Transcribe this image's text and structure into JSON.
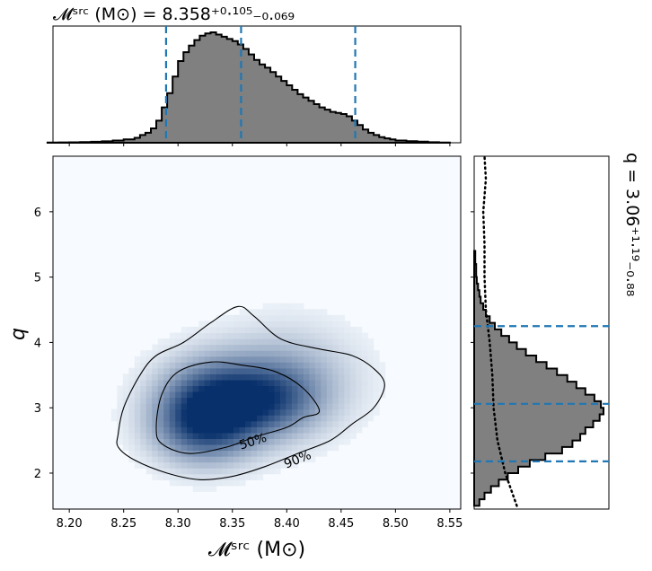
{
  "title": {
    "top": "𝓜ˢʳᶜ (M⊙) = 8.358⁺⁰·¹⁰⁵₋₀.₀₆₉",
    "right": "q = 3.06⁺¹·¹⁹₋₀.₈₈"
  },
  "axes": {
    "xlabel": "𝓜ˢʳᶜ (M⊙)",
    "ylabel": "q"
  },
  "colors": {
    "hist_fill": "#808080",
    "hist_edge": "#000000",
    "quantile_line": "#1f77b4",
    "density_high": "#08306b",
    "density_low": "#f7fbff"
  },
  "chart_data": {
    "type": "heatmap",
    "xlim": [
      8.185,
      8.56
    ],
    "ylim": [
      1.45,
      6.85
    ],
    "xticks": [
      8.2,
      8.25,
      8.3,
      8.35,
      8.4,
      8.45,
      8.5,
      8.55
    ],
    "xtick_labels": [
      "8.20",
      "8.25",
      "8.30",
      "8.35",
      "8.40",
      "8.45",
      "8.50",
      "8.55"
    ],
    "yticks": [
      2,
      3,
      4,
      5,
      6
    ],
    "ytick_labels": [
      "2",
      "3",
      "4",
      "5",
      "6"
    ],
    "contour_labels": [
      "50%",
      "90%"
    ],
    "mchirp_quantiles": [
      8.289,
      8.358,
      8.463
    ],
    "q_quantiles": [
      2.18,
      3.06,
      4.25
    ],
    "mchirp_marginal": {
      "bins": [
        8.18,
        8.19,
        8.2,
        8.21,
        8.22,
        8.23,
        8.24,
        8.25,
        8.26,
        8.265,
        8.27,
        8.275,
        8.28,
        8.285,
        8.29,
        8.295,
        8.3,
        8.305,
        8.31,
        8.315,
        8.32,
        8.325,
        8.33,
        8.335,
        8.34,
        8.345,
        8.35,
        8.355,
        8.36,
        8.365,
        8.37,
        8.375,
        8.38,
        8.385,
        8.39,
        8.395,
        8.4,
        8.405,
        8.41,
        8.415,
        8.42,
        8.425,
        8.43,
        8.435,
        8.44,
        8.445,
        8.45,
        8.455,
        8.46,
        8.465,
        8.47,
        8.475,
        8.48,
        8.485,
        8.49,
        8.495,
        8.5,
        8.51,
        8.52,
        8.53,
        8.54,
        8.55
      ],
      "density": [
        0.002,
        0.003,
        0.004,
        0.006,
        0.009,
        0.013,
        0.02,
        0.03,
        0.045,
        0.07,
        0.09,
        0.13,
        0.2,
        0.32,
        0.45,
        0.6,
        0.74,
        0.82,
        0.88,
        0.93,
        0.97,
        0.99,
        1.0,
        0.98,
        0.96,
        0.94,
        0.92,
        0.89,
        0.85,
        0.8,
        0.75,
        0.71,
        0.68,
        0.64,
        0.6,
        0.56,
        0.52,
        0.48,
        0.44,
        0.41,
        0.38,
        0.35,
        0.32,
        0.3,
        0.28,
        0.27,
        0.26,
        0.24,
        0.2,
        0.16,
        0.12,
        0.09,
        0.07,
        0.05,
        0.04,
        0.03,
        0.02,
        0.015,
        0.01,
        0.005,
        0.002
      ]
    },
    "q_marginal": {
      "bins": [
        1.5,
        1.6,
        1.7,
        1.8,
        1.9,
        2.0,
        2.1,
        2.2,
        2.3,
        2.4,
        2.5,
        2.6,
        2.7,
        2.8,
        2.9,
        3.0,
        3.1,
        3.2,
        3.3,
        3.4,
        3.5,
        3.6,
        3.7,
        3.8,
        3.9,
        4.0,
        4.1,
        4.2,
        4.3,
        4.4,
        4.5,
        4.6,
        4.7,
        4.8,
        4.9,
        5.0,
        5.2,
        5.4
      ],
      "density": [
        0.04,
        0.08,
        0.13,
        0.19,
        0.26,
        0.34,
        0.43,
        0.55,
        0.68,
        0.76,
        0.82,
        0.86,
        0.92,
        0.97,
        1.0,
        0.98,
        0.93,
        0.86,
        0.79,
        0.72,
        0.64,
        0.56,
        0.48,
        0.4,
        0.33,
        0.27,
        0.21,
        0.16,
        0.12,
        0.09,
        0.07,
        0.05,
        0.04,
        0.03,
        0.02,
        0.015,
        0.008
      ]
    },
    "q_prior_curve": {
      "q": [
        1.5,
        2.0,
        2.5,
        3.0,
        3.5,
        4.0,
        4.5,
        5.0,
        5.5,
        6.0,
        6.5,
        6.85
      ],
      "density": [
        0.33,
        0.24,
        0.18,
        0.15,
        0.14,
        0.12,
        0.09,
        0.08,
        0.08,
        0.07,
        0.09,
        0.08
      ]
    },
    "density_blobs": [
      {
        "x": 8.335,
        "y": 3.05,
        "sx": 0.032,
        "sy": 0.42,
        "w": 1.0
      },
      {
        "x": 8.385,
        "y": 3.15,
        "sx": 0.03,
        "sy": 0.35,
        "w": 0.55
      },
      {
        "x": 8.32,
        "y": 2.7,
        "sx": 0.028,
        "sy": 0.35,
        "w": 0.45
      },
      {
        "x": 8.4,
        "y": 3.45,
        "sx": 0.04,
        "sy": 0.5,
        "w": 0.25
      }
    ],
    "contour50": [
      [
        8.28,
        2.7
      ],
      [
        8.285,
        3.2
      ],
      [
        8.3,
        3.55
      ],
      [
        8.33,
        3.7
      ],
      [
        8.36,
        3.65
      ],
      [
        8.39,
        3.55
      ],
      [
        8.415,
        3.3
      ],
      [
        8.43,
        2.95
      ],
      [
        8.415,
        2.85
      ],
      [
        8.4,
        2.7
      ],
      [
        8.37,
        2.55
      ],
      [
        8.345,
        2.4
      ],
      [
        8.31,
        2.3
      ],
      [
        8.285,
        2.45
      ],
      [
        8.28,
        2.7
      ]
    ],
    "contour90": [
      [
        8.245,
        2.6
      ],
      [
        8.25,
        3.0
      ],
      [
        8.265,
        3.5
      ],
      [
        8.28,
        3.8
      ],
      [
        8.305,
        4.0
      ],
      [
        8.33,
        4.3
      ],
      [
        8.355,
        4.55
      ],
      [
        8.37,
        4.4
      ],
      [
        8.395,
        4.05
      ],
      [
        8.43,
        3.9
      ],
      [
        8.46,
        3.8
      ],
      [
        8.48,
        3.6
      ],
      [
        8.49,
        3.35
      ],
      [
        8.48,
        3.0
      ],
      [
        8.46,
        2.75
      ],
      [
        8.44,
        2.5
      ],
      [
        8.41,
        2.3
      ],
      [
        8.38,
        2.1
      ],
      [
        8.35,
        1.95
      ],
      [
        8.32,
        1.9
      ],
      [
        8.29,
        2.0
      ],
      [
        8.26,
        2.2
      ],
      [
        8.245,
        2.4
      ],
      [
        8.245,
        2.6
      ]
    ]
  }
}
